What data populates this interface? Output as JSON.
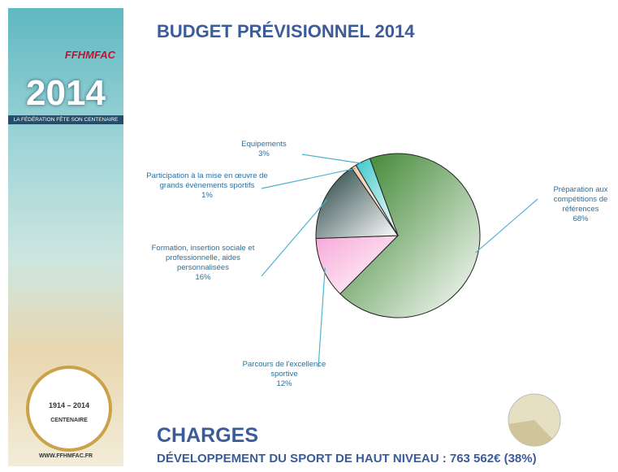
{
  "sidebar": {
    "logo": "FFHMFAC",
    "year": "2014",
    "tagline": "LA FÉDÉRATION FÊTE SON CENTENAIRE",
    "badge_years": [
      "1914",
      "2014"
    ],
    "badge_text": "CENTENAIRE",
    "url": "WWW.FFHMFAC.FR"
  },
  "chart_data": {
    "type": "pie",
    "title": "BUDGET PRÉVISIONNEL 2014",
    "annotations": [
      "CHARGES",
      "DÉVELOPPEMENT DU SPORT DE HAUT NIVEAU : 763 562€ (38%)"
    ],
    "categories": [
      "Préparation aux compétitions de références",
      "Parcours de l'excellence sportive",
      "Formation, insertion sociale et professionnelle, aides personnalisées",
      "Participation à la mise en œuvre de grands évènements sportifs",
      "Equipements"
    ],
    "values": [
      68,
      12,
      16,
      1,
      3
    ],
    "value_labels": [
      "68%",
      "12%",
      "16%",
      "1%",
      "3%"
    ],
    "colors": [
      "#2f7d22",
      "#f7a8d8",
      "#1e3c3c",
      "#f2c7a2",
      "#3cc7c9"
    ]
  }
}
